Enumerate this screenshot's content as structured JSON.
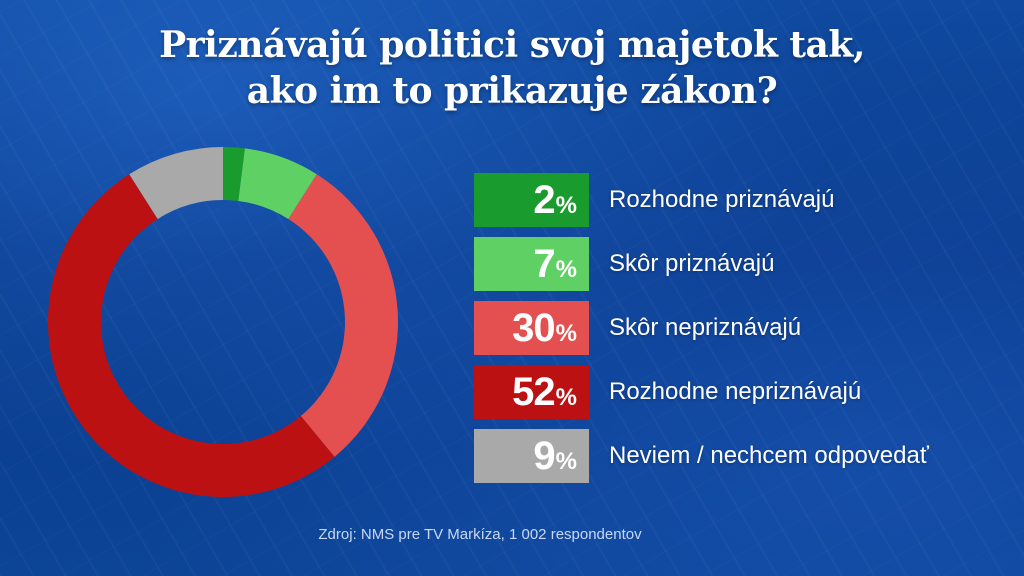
{
  "title_lines": [
    "Priznávajú politici svoj majetok tak,",
    "ako im to prikazuje zákon?"
  ],
  "source": "Zdroj: NMS pre TV Markíza, 1 002 respondentov",
  "percent_sign": "%",
  "chart_data": {
    "type": "pie",
    "variant": "donut",
    "title": "Priznávajú politici svoj majetok tak, ako im to prikazuje zákon?",
    "unit": "%",
    "categories": [
      "Rozhodne priznávajú",
      "Skôr priznávajú",
      "Skôr nepriznávajú",
      "Rozhodne nepriznávajú",
      "Neviem / nechcem odpovedať"
    ],
    "values": [
      2,
      7,
      30,
      52,
      9
    ],
    "colors": [
      "#1a9b2e",
      "#5fd063",
      "#e4504f",
      "#bb1112",
      "#a9a9a9"
    ],
    "legend_position": "right"
  }
}
